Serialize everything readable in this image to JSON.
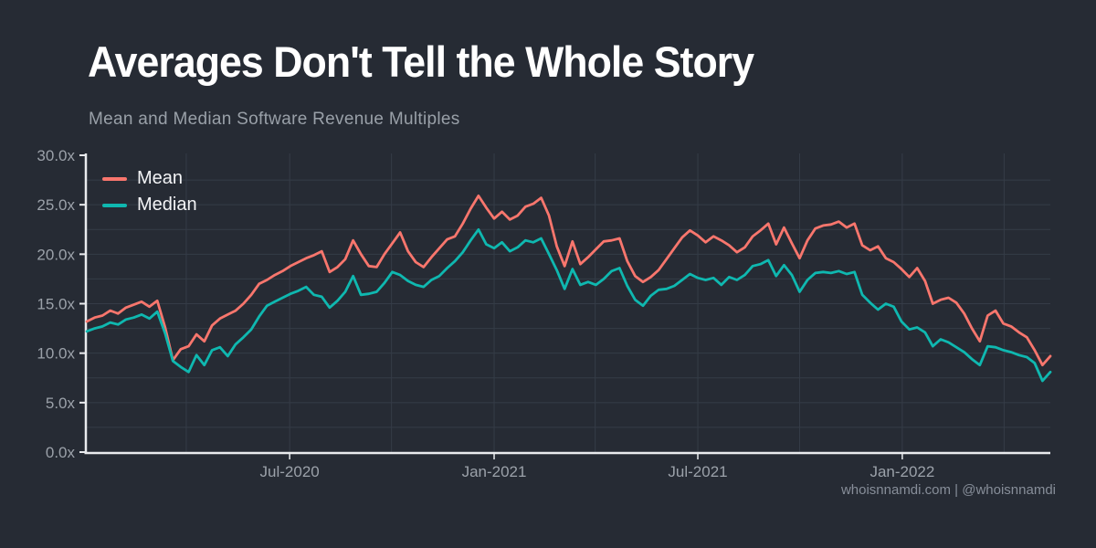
{
  "header": {
    "title": "Averages Don't Tell the Whole Story",
    "subtitle": "Mean and Median Software Revenue Multiples"
  },
  "footer": {
    "credit": "whoisnnamdi.com | @whoisnnamdi"
  },
  "colors": {
    "background": "#262B34",
    "grid": "#353C47",
    "axis": "#E9EBEE",
    "tick_text": "#9BA1A9",
    "title_text": "#FFFFFF",
    "muted_text": "#99A0A8",
    "mean": "#F8766D",
    "median": "#0FB8B0"
  },
  "chart_data": {
    "type": "line",
    "title": "Averages Don't Tell the Whole Story",
    "subtitle": "Mean and Median Software Revenue Multiples",
    "xlabel": "",
    "ylabel": "",
    "unit_suffix": "x",
    "x_start_date": "2020-01-03",
    "x_interval": "weekly",
    "x_domain": [
      0,
      123
    ],
    "ylim": [
      0,
      30
    ],
    "grid": true,
    "legend_position": "top-left",
    "y_ticks": [
      {
        "value": 0,
        "label": "0.0x"
      },
      {
        "value": 5,
        "label": "5.0x"
      },
      {
        "value": 10,
        "label": "10.0x"
      },
      {
        "value": 15,
        "label": "15.0x"
      },
      {
        "value": 20,
        "label": "20.0x"
      },
      {
        "value": 25,
        "label": "25.0x"
      },
      {
        "value": 30,
        "label": "30.0x"
      }
    ],
    "y_gridline_step": 2.5,
    "x_ticks": [
      {
        "pos": 25.9,
        "label": "Jul-2020"
      },
      {
        "pos": 52.0,
        "label": "Jan-2021"
      },
      {
        "pos": 78.0,
        "label": "Jul-2021"
      },
      {
        "pos": 104.1,
        "label": "Jan-2022"
      }
    ],
    "x_gridlines": [
      12.7,
      25.9,
      38.9,
      52.0,
      64.9,
      78.0,
      91.0,
      104.1,
      117.1
    ],
    "series": [
      {
        "name": "Mean",
        "color": "#F8766D",
        "values": [
          13.2,
          13.6,
          13.8,
          14.3,
          14.0,
          14.6,
          14.9,
          15.2,
          14.7,
          15.3,
          12.6,
          9.3,
          10.4,
          10.7,
          11.9,
          11.2,
          12.8,
          13.5,
          13.9,
          14.3,
          15.0,
          15.9,
          17.0,
          17.4,
          17.9,
          18.3,
          18.8,
          19.2,
          19.6,
          19.9,
          20.3,
          18.2,
          18.7,
          19.5,
          21.4,
          20.0,
          18.8,
          18.7,
          20.0,
          21.1,
          22.2,
          20.3,
          19.2,
          18.7,
          19.7,
          20.6,
          21.5,
          21.8,
          23.1,
          24.6,
          25.9,
          24.7,
          23.6,
          24.3,
          23.5,
          23.9,
          24.8,
          25.1,
          25.7,
          23.9,
          20.8,
          18.8,
          21.3,
          19.0,
          19.7,
          20.5,
          21.3,
          21.4,
          21.6,
          19.3,
          17.8,
          17.2,
          17.7,
          18.4,
          19.5,
          20.6,
          21.7,
          22.4,
          21.9,
          21.2,
          21.8,
          21.4,
          20.9,
          20.2,
          20.7,
          21.8,
          22.4,
          23.1,
          21.0,
          22.7,
          21.1,
          19.6,
          21.4,
          22.6,
          22.9,
          23.0,
          23.3,
          22.7,
          23.1,
          20.9,
          20.4,
          20.8,
          19.6,
          19.2,
          18.5,
          17.7,
          18.6,
          17.3,
          15.0,
          15.4,
          15.6,
          15.1,
          14.0,
          12.5,
          11.2,
          13.8,
          14.3,
          13.0,
          12.7,
          12.1,
          11.6,
          10.3,
          8.8,
          9.7
        ]
      },
      {
        "name": "Median",
        "color": "#0FB8B0",
        "values": [
          12.2,
          12.5,
          12.7,
          13.1,
          12.9,
          13.4,
          13.6,
          13.9,
          13.5,
          14.2,
          12.0,
          9.2,
          8.6,
          8.1,
          9.8,
          8.8,
          10.3,
          10.6,
          9.7,
          10.9,
          11.6,
          12.4,
          13.7,
          14.8,
          15.2,
          15.6,
          16.0,
          16.3,
          16.7,
          15.9,
          15.7,
          14.6,
          15.3,
          16.2,
          17.8,
          15.9,
          16.0,
          16.2,
          17.1,
          18.2,
          17.9,
          17.3,
          16.9,
          16.7,
          17.4,
          17.8,
          18.6,
          19.3,
          20.2,
          21.4,
          22.5,
          21.0,
          20.6,
          21.2,
          20.3,
          20.7,
          21.4,
          21.2,
          21.6,
          20.0,
          18.4,
          16.5,
          18.5,
          16.9,
          17.2,
          16.9,
          17.5,
          18.3,
          18.6,
          16.8,
          15.4,
          14.8,
          15.8,
          16.4,
          16.5,
          16.8,
          17.4,
          18.0,
          17.6,
          17.4,
          17.6,
          16.9,
          17.7,
          17.4,
          17.9,
          18.8,
          19.0,
          19.4,
          17.8,
          18.9,
          17.9,
          16.2,
          17.4,
          18.1,
          18.2,
          18.1,
          18.3,
          18.0,
          18.2,
          15.9,
          15.1,
          14.4,
          15.0,
          14.7,
          13.2,
          12.4,
          12.6,
          12.1,
          10.7,
          11.4,
          11.1,
          10.6,
          10.1,
          9.4,
          8.8,
          10.7,
          10.6,
          10.3,
          10.1,
          9.8,
          9.6,
          9.0,
          7.2,
          8.1
        ]
      }
    ]
  }
}
